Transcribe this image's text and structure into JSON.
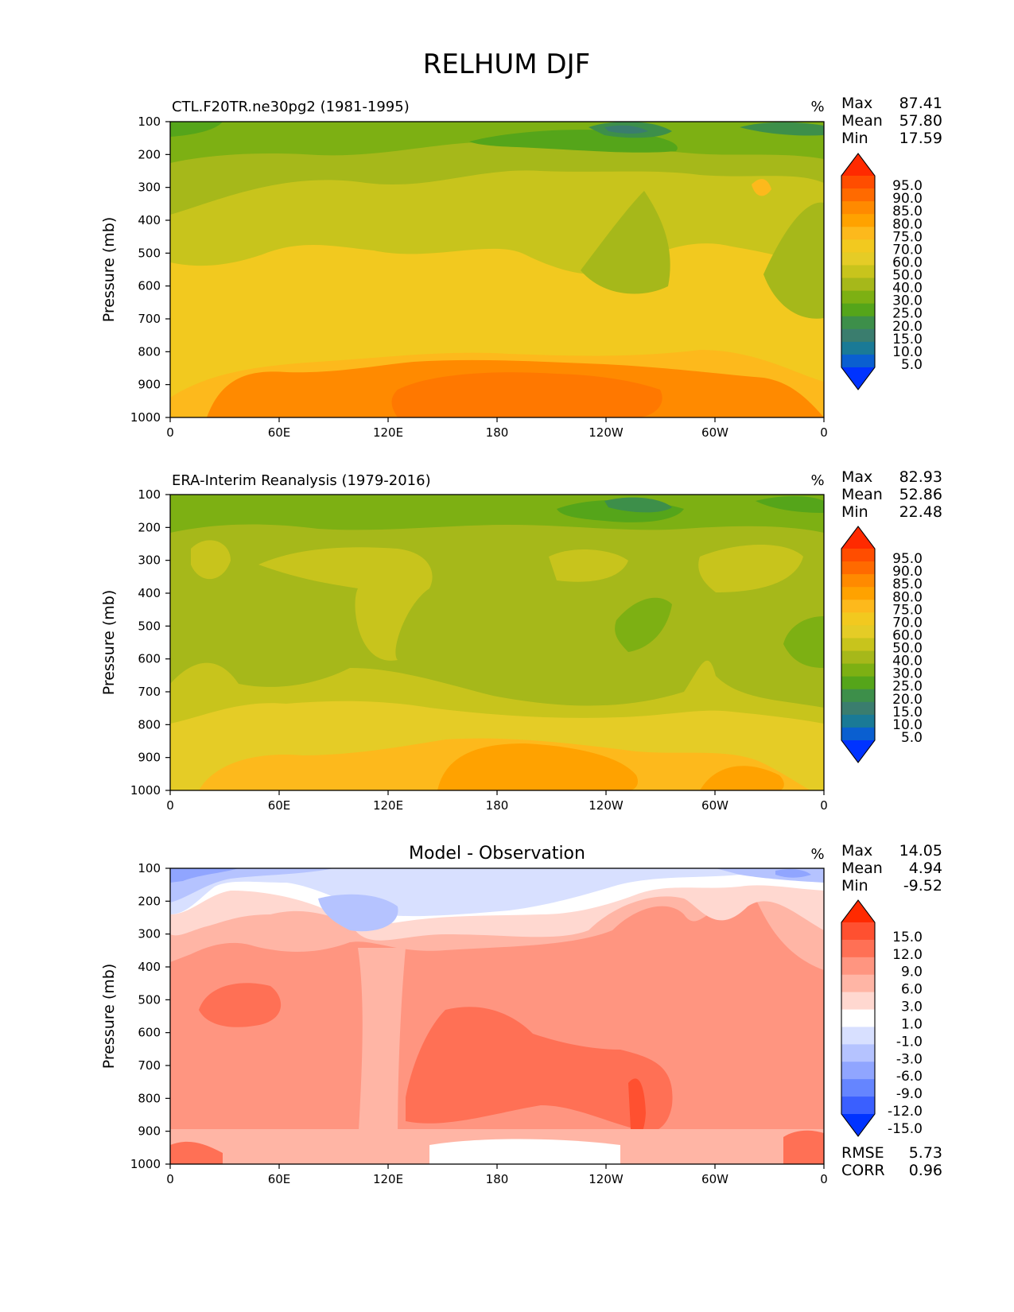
{
  "title": "RELHUM DJF",
  "chart_data": [
    {
      "type": "contourf",
      "subtitle": "CTL.F20TR.ne30pg2 (1981-1995)",
      "units": "%",
      "ylabel": "Pressure (mb)",
      "xlabel": "",
      "xticks": [
        "0",
        "60E",
        "120E",
        "180",
        "120W",
        "60W",
        "0"
      ],
      "yticks": [
        "100",
        "200",
        "300",
        "400",
        "500",
        "600",
        "700",
        "800",
        "900",
        "1000"
      ],
      "ylim": [
        1000,
        100
      ],
      "xlim": [
        0,
        360
      ],
      "stats": [
        {
          "label": "Max",
          "value": "87.41"
        },
        {
          "label": "Mean",
          "value": "57.80"
        },
        {
          "label": "Min",
          "value": "17.59"
        }
      ],
      "colorbar": {
        "labels": [
          "95.0",
          "90.0",
          "85.0",
          "80.0",
          "75.0",
          "70.0",
          "60.0",
          "50.0",
          "40.0",
          "30.0",
          "25.0",
          "20.0",
          "15.0",
          "10.0",
          "5.0"
        ],
        "colors": [
          "#ff2a00",
          "#ff4d00",
          "#ff6a00",
          "#ff8a00",
          "#ffa200",
          "#fdb91c",
          "#f2c91f",
          "#e5cc26",
          "#c8c41c",
          "#a6b81a",
          "#7db013",
          "#55a51a",
          "#3d8f4a",
          "#3a7d6e",
          "#1a7a96",
          "#0a5fd0",
          "#0033ff"
        ]
      }
    },
    {
      "type": "contourf",
      "subtitle": "ERA-Interim Reanalysis (1979-2016)",
      "units": "%",
      "ylabel": "Pressure (mb)",
      "xlabel": "",
      "xticks": [
        "0",
        "60E",
        "120E",
        "180",
        "120W",
        "60W",
        "0"
      ],
      "yticks": [
        "100",
        "200",
        "300",
        "400",
        "500",
        "600",
        "700",
        "800",
        "900",
        "1000"
      ],
      "ylim": [
        1000,
        100
      ],
      "xlim": [
        0,
        360
      ],
      "stats": [
        {
          "label": "Max",
          "value": "82.93"
        },
        {
          "label": "Mean",
          "value": "52.86"
        },
        {
          "label": "Min",
          "value": "22.48"
        }
      ],
      "colorbar": {
        "labels": [
          "95.0",
          "90.0",
          "85.0",
          "80.0",
          "75.0",
          "70.0",
          "60.0",
          "50.0",
          "40.0",
          "30.0",
          "25.0",
          "20.0",
          "15.0",
          "10.0",
          "5.0"
        ],
        "colors": [
          "#ff2a00",
          "#ff4d00",
          "#ff6a00",
          "#ff8a00",
          "#ffa200",
          "#fdb91c",
          "#f2c91f",
          "#e5cc26",
          "#c8c41c",
          "#a6b81a",
          "#7db013",
          "#55a51a",
          "#3d8f4a",
          "#3a7d6e",
          "#1a7a96",
          "#0a5fd0",
          "#0033ff"
        ]
      }
    },
    {
      "type": "contourf",
      "subtitle": "Model - Observation",
      "units": "%",
      "ylabel": "Pressure (mb)",
      "xlabel": "",
      "xticks": [
        "0",
        "60E",
        "120E",
        "180",
        "120W",
        "60W",
        "0"
      ],
      "yticks": [
        "100",
        "200",
        "300",
        "400",
        "500",
        "600",
        "700",
        "800",
        "900",
        "1000"
      ],
      "ylim": [
        1000,
        100
      ],
      "xlim": [
        0,
        360
      ],
      "stats": [
        {
          "label": "Max",
          "value": "14.05"
        },
        {
          "label": "Mean",
          "value": "4.94"
        },
        {
          "label": "Min",
          "value": "-9.52"
        }
      ],
      "extra_stats": [
        {
          "label": "RMSE",
          "value": "5.73"
        },
        {
          "label": "CORR",
          "value": "0.96"
        }
      ],
      "colorbar": {
        "labels": [
          "15.0",
          "12.0",
          "9.0",
          "6.0",
          "3.0",
          "1.0",
          "-1.0",
          "-3.0",
          "-6.0",
          "-9.0",
          "-12.0",
          "-15.0"
        ],
        "colors": [
          "#ff2a00",
          "#ff5030",
          "#ff7055",
          "#ff9580",
          "#ffb5a5",
          "#ffd8d0",
          "#ffffff",
          "#d8e0ff",
          "#b5c3ff",
          "#90a5ff",
          "#6585ff",
          "#3a5fff",
          "#0033ff"
        ]
      }
    }
  ]
}
